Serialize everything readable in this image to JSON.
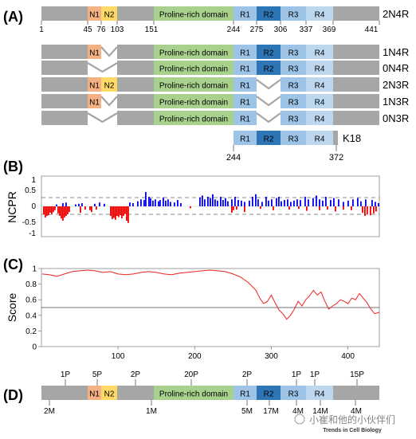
{
  "panels": {
    "a": "(A)",
    "b": "(B)",
    "c": "(C)",
    "d": "(D)"
  },
  "domains": {
    "n1": "N1",
    "n2": "N2",
    "proline": "Proline-rich domain",
    "r1": "R1",
    "r2": "R2",
    "r3": "R3",
    "r4": "R4"
  },
  "isoforms": [
    {
      "name": "2N4R",
      "n1": true,
      "n2": true,
      "r2": true
    },
    {
      "name": "1N4R",
      "n1": true,
      "n2": false,
      "r2": true
    },
    {
      "name": "0N4R",
      "n1": false,
      "n2": false,
      "r2": true
    },
    {
      "name": "2N3R",
      "n1": true,
      "n2": true,
      "r2": false
    },
    {
      "name": "1N3R",
      "n1": true,
      "n2": false,
      "r2": false
    },
    {
      "name": "0N3R",
      "n1": false,
      "n2": false,
      "r2": false
    }
  ],
  "residue_ticks": [
    "1",
    "45",
    "76",
    "103",
    "151",
    "244",
    "275",
    "306",
    "337",
    "369",
    "441"
  ],
  "k18": {
    "name": "K18",
    "start": "244",
    "end": "372"
  },
  "colors": {
    "gray": "#a6a6a6",
    "n1": "#f4b183",
    "n2": "#ffd966",
    "proline": "#a9d18e",
    "r_light": "#9dc3e6",
    "r2": "#2e75b6",
    "r4": "#bdd7ee",
    "positive": "#0000ee",
    "negative": "#ee0000",
    "score_line": "#ee2222"
  },
  "ncpr": {
    "ylabel": "NCPR",
    "ticks": [
      "1",
      "0.5",
      "0",
      "-0.5",
      "-1"
    ]
  },
  "chart_data": {
    "type": "line",
    "ylabel": "Score",
    "xticks": [
      "100",
      "200",
      "300",
      "400"
    ],
    "yticks": [
      "1",
      "0.8",
      "0.6",
      "0.4",
      "0.2",
      "0"
    ],
    "xlim": [
      0,
      441
    ],
    "ylim": [
      0,
      1
    ],
    "threshold": 0.5,
    "x": [
      1,
      10,
      20,
      30,
      40,
      50,
      60,
      70,
      80,
      90,
      100,
      110,
      120,
      130,
      140,
      150,
      160,
      170,
      180,
      190,
      200,
      210,
      220,
      230,
      240,
      250,
      260,
      270,
      280,
      285,
      290,
      295,
      300,
      305,
      310,
      315,
      320,
      325,
      330,
      335,
      340,
      345,
      350,
      355,
      360,
      365,
      370,
      375,
      380,
      385,
      390,
      395,
      400,
      405,
      410,
      415,
      420,
      425,
      430,
      435,
      441
    ],
    "series": [
      {
        "values": [
          0.93,
          0.92,
          0.9,
          0.93,
          0.96,
          0.97,
          0.98,
          0.97,
          0.95,
          0.96,
          0.93,
          0.92,
          0.93,
          0.95,
          0.96,
          0.95,
          0.93,
          0.92,
          0.94,
          0.95,
          0.96,
          0.97,
          0.98,
          0.97,
          0.96,
          0.93,
          0.89,
          0.82,
          0.72,
          0.62,
          0.55,
          0.58,
          0.66,
          0.56,
          0.47,
          0.42,
          0.35,
          0.4,
          0.48,
          0.58,
          0.52,
          0.6,
          0.65,
          0.72,
          0.66,
          0.7,
          0.58,
          0.48,
          0.52,
          0.55,
          0.6,
          0.58,
          0.55,
          0.62,
          0.6,
          0.68,
          0.62,
          0.56,
          0.48,
          0.42,
          0.44
        ]
      }
    ]
  },
  "phospho_top": [
    "1P",
    "5P",
    "2P",
    "20P",
    "2P",
    "1P",
    "1P",
    "15P"
  ],
  "methyl_bottom": [
    "2M",
    "1M",
    "5M",
    "17M",
    "4M",
    "14M",
    "4M"
  ],
  "watermark": "小崔和他的小伙伴们",
  "journal": "Trends in Cell Biology"
}
